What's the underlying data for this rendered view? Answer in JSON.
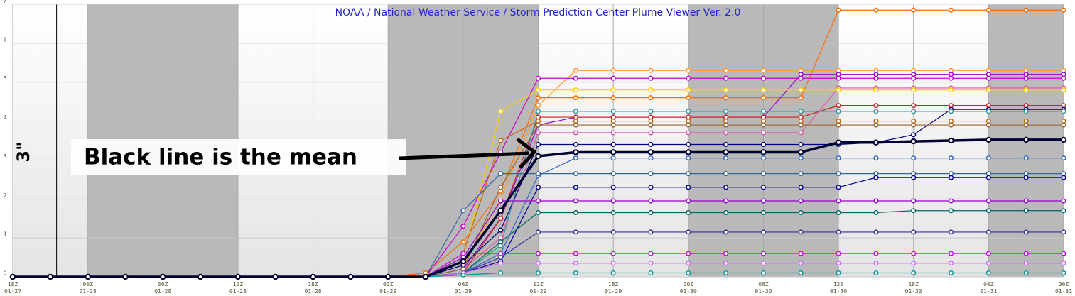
{
  "chart_data": {
    "type": "line",
    "title": "NOAA / National Weather Service / Storm Prediction Center Plume Viewer Ver. 2.0",
    "annotations": [
      "Black line is the mean",
      "3\""
    ],
    "x": [
      0,
      3,
      6,
      9,
      12,
      15,
      18,
      21,
      24,
      27,
      30,
      33,
      36,
      39,
      42,
      45,
      48,
      51,
      54,
      57,
      60,
      63,
      66,
      69,
      72,
      75,
      78,
      81,
      84
    ],
    "xlim": [
      0,
      84
    ],
    "xticks": [
      {
        "value": 0,
        "label": "18Z\n01-27"
      },
      {
        "value": 6,
        "label": "00Z\n01-28"
      },
      {
        "value": 12,
        "label": "06Z\n01-28"
      },
      {
        "value": 18,
        "label": "12Z\n01-28"
      },
      {
        "value": 24,
        "label": "18Z\n01-28"
      },
      {
        "value": 30,
        "label": "00Z\n01-29"
      },
      {
        "value": 36,
        "label": "06Z\n01-29"
      },
      {
        "value": 42,
        "label": "12Z\n01-29"
      },
      {
        "value": 48,
        "label": "18Z\n01-29"
      },
      {
        "value": 54,
        "label": "00Z\n01-30"
      },
      {
        "value": 60,
        "label": "06Z\n01-30"
      },
      {
        "value": 66,
        "label": "12Z\n01-30"
      },
      {
        "value": 72,
        "label": "18Z\n01-30"
      },
      {
        "value": 78,
        "label": "00Z\n01-31"
      },
      {
        "value": 84,
        "label": "06Z\n01-31"
      }
    ],
    "ylim": [
      0,
      7
    ],
    "yticks": [
      0,
      1,
      2,
      3,
      4,
      5,
      6,
      7
    ],
    "grid": true,
    "shading": [
      [
        6,
        18
      ],
      [
        30,
        42
      ],
      [
        54,
        66
      ],
      [
        78,
        84
      ]
    ],
    "now_line": 3.5,
    "series": [
      {
        "color": "#ff6a00",
        "values": [
          0,
          0,
          0,
          0,
          0,
          0,
          0,
          0,
          0,
          0,
          0,
          0.1,
          0.9,
          2.2,
          4.6,
          4.6,
          4.6,
          4.6,
          4.6,
          4.6,
          4.6,
          4.6,
          6.85,
          6.85,
          6.85,
          6.85,
          6.85,
          6.85,
          6.85
        ]
      },
      {
        "color": "#ff9933",
        "values": [
          0,
          0,
          0,
          0,
          0,
          0,
          0,
          0,
          0,
          0,
          0,
          0,
          0.3,
          2.0,
          4.4,
          5.3,
          5.3,
          5.3,
          5.3,
          5.3,
          5.3,
          5.3,
          5.3,
          5.3,
          5.3,
          5.3,
          5.3,
          5.3,
          5.3
        ]
      },
      {
        "color": "#9900cc",
        "values": [
          0,
          0,
          0,
          0,
          0,
          0,
          0,
          0,
          0,
          0,
          0,
          0,
          0.2,
          1.5,
          3.9,
          4.1,
          4.1,
          4.1,
          4.1,
          4.1,
          4.1,
          5.2,
          5.2,
          5.2,
          5.2,
          5.2,
          5.2,
          5.2,
          5.2
        ]
      },
      {
        "color": "#cc00cc",
        "values": [
          0,
          0,
          0,
          0,
          0,
          0,
          0,
          0,
          0,
          0,
          0,
          0,
          1.3,
          3.2,
          5.1,
          5.1,
          5.1,
          5.1,
          5.1,
          5.1,
          5.1,
          5.1,
          5.1,
          5.1,
          5.1,
          5.1,
          5.1,
          5.1,
          5.1
        ]
      },
      {
        "color": "#dd55aa",
        "values": [
          0,
          0,
          0,
          0,
          0,
          0,
          0,
          0,
          0,
          0,
          0,
          0,
          0.2,
          1.0,
          3.7,
          3.7,
          3.7,
          3.7,
          3.7,
          3.7,
          3.7,
          3.7,
          4.85,
          4.85,
          4.85,
          4.85,
          4.85,
          4.85,
          4.85
        ]
      },
      {
        "color": "#ffcc00",
        "values": [
          0,
          0,
          0,
          0,
          0,
          0,
          0,
          0,
          0,
          0,
          0,
          0,
          0.5,
          4.25,
          4.8,
          4.8,
          4.8,
          4.8,
          4.8,
          4.8,
          4.8,
          4.8,
          4.8,
          4.8,
          4.8,
          4.8,
          4.8,
          4.8,
          4.8
        ]
      },
      {
        "color": "#cc2222",
        "values": [
          0,
          0,
          0,
          0,
          0,
          0,
          0,
          0,
          0,
          0,
          0,
          0,
          0.1,
          1.5,
          4.1,
          4.1,
          4.1,
          4.1,
          4.1,
          4.1,
          4.1,
          4.1,
          4.4,
          4.4,
          4.4,
          4.4,
          4.4,
          4.4,
          4.4
        ]
      },
      {
        "color": "#000080",
        "values": [
          0,
          0,
          0,
          0,
          0,
          0,
          0,
          0,
          0,
          0,
          0,
          0,
          0.3,
          1.2,
          3.4,
          3.4,
          3.4,
          3.4,
          3.4,
          3.4,
          3.4,
          3.4,
          3.4,
          3.45,
          3.65,
          4.3,
          4.3,
          4.3,
          4.3
        ]
      },
      {
        "color": "#339999",
        "values": [
          0,
          0,
          0,
          0,
          0,
          0,
          0,
          0,
          0,
          0,
          0,
          0,
          0.1,
          0.8,
          4.25,
          4.25,
          4.25,
          4.25,
          4.25,
          4.25,
          4.25,
          4.25,
          4.25,
          4.25,
          4.25,
          4.25,
          4.25,
          4.25,
          4.25
        ]
      },
      {
        "color": "#cc6600",
        "values": [
          0,
          0,
          0,
          0,
          0,
          0,
          0,
          0,
          0,
          0,
          0,
          0,
          0.6,
          3.5,
          4.0,
          4.0,
          4.0,
          4.0,
          4.0,
          4.0,
          4.0,
          4.0,
          4.0,
          4.0,
          4.0,
          4.0,
          4.0,
          4.0,
          4.0
        ]
      },
      {
        "color": "#996633",
        "values": [
          0,
          0,
          0,
          0,
          0,
          0,
          0,
          0,
          0,
          0,
          0,
          0,
          0.2,
          2.3,
          3.9,
          3.9,
          3.9,
          3.9,
          3.9,
          3.9,
          3.9,
          3.9,
          3.9,
          3.9,
          3.9,
          3.9,
          3.9,
          3.9,
          3.9
        ]
      },
      {
        "color": "#3366cc",
        "values": [
          0,
          0,
          0,
          0,
          0,
          0,
          0,
          0,
          0,
          0,
          0,
          0,
          0.1,
          0.6,
          2.6,
          3.05,
          3.05,
          3.05,
          3.05,
          3.05,
          3.05,
          3.05,
          3.05,
          3.05,
          3.05,
          3.05,
          3.05,
          3.05,
          3.05
        ]
      },
      {
        "color": "#336699",
        "values": [
          0,
          0,
          0,
          0,
          0,
          0,
          0,
          0,
          0,
          0,
          0,
          0,
          1.7,
          2.65,
          2.65,
          2.65,
          2.65,
          2.65,
          2.65,
          2.65,
          2.65,
          2.65,
          2.65,
          2.65,
          2.65,
          2.65,
          2.65,
          2.65,
          2.65
        ]
      },
      {
        "color": "#000099",
        "values": [
          0,
          0,
          0,
          0,
          0,
          0,
          0,
          0,
          0,
          0,
          0,
          0,
          0.1,
          0.4,
          2.3,
          2.3,
          2.3,
          2.3,
          2.3,
          2.3,
          2.3,
          2.3,
          2.3,
          2.55,
          2.55,
          2.55,
          2.55,
          2.55,
          2.55
        ]
      },
      {
        "color": "#9900cc",
        "values": [
          0,
          0,
          0,
          0,
          0,
          0,
          0,
          0,
          0,
          0,
          0,
          0,
          0.5,
          1.95,
          1.95,
          1.95,
          1.95,
          1.95,
          1.95,
          1.95,
          1.95,
          1.95,
          1.95,
          1.95,
          1.95,
          1.95,
          1.95,
          1.95,
          1.95
        ]
      },
      {
        "color": "#006666",
        "values": [
          0,
          0,
          0,
          0,
          0,
          0,
          0,
          0,
          0,
          0,
          0,
          0,
          0.1,
          0.9,
          1.65,
          1.65,
          1.65,
          1.65,
          1.65,
          1.65,
          1.65,
          1.65,
          1.65,
          1.65,
          1.7,
          1.7,
          1.7,
          1.7,
          1.7
        ]
      },
      {
        "color": "#333399",
        "values": [
          0,
          0,
          0,
          0,
          0,
          0,
          0,
          0,
          0,
          0,
          0,
          0,
          0.1,
          0.5,
          1.15,
          1.15,
          1.15,
          1.15,
          1.15,
          1.15,
          1.15,
          1.15,
          1.15,
          1.15,
          1.15,
          1.15,
          1.15,
          1.15,
          1.15
        ]
      },
      {
        "color": "#cc00ff",
        "values": [
          0,
          0,
          0,
          0,
          0,
          0,
          0,
          0,
          0,
          0,
          0,
          0,
          0.6,
          0.6,
          0.6,
          0.6,
          0.6,
          0.6,
          0.6,
          0.6,
          0.6,
          0.6,
          0.6,
          0.6,
          0.6,
          0.6,
          0.6,
          0.6,
          0.6
        ]
      },
      {
        "color": "#cc66ff",
        "values": [
          0,
          0,
          0,
          0,
          0,
          0,
          0,
          0,
          0,
          0,
          0,
          0,
          0.1,
          0.35,
          0.35,
          0.35,
          0.35,
          0.35,
          0.35,
          0.35,
          0.35,
          0.35,
          0.35,
          0.35,
          0.35,
          0.35,
          0.35,
          0.35,
          0.35
        ]
      },
      {
        "color": "#009999",
        "values": [
          0,
          0,
          0,
          0,
          0,
          0,
          0,
          0,
          0,
          0,
          0,
          0,
          0.05,
          0.1,
          0.1,
          0.1,
          0.1,
          0.1,
          0.1,
          0.1,
          0.1,
          0.1,
          0.1,
          0.1,
          0.1,
          0.1,
          0.1,
          0.1,
          0.1
        ]
      },
      {
        "color": "#000033",
        "width": 3.5,
        "values": [
          0,
          0,
          0,
          0,
          0,
          0,
          0,
          0,
          0,
          0,
          0,
          0,
          0.4,
          1.7,
          3.1,
          3.2,
          3.2,
          3.2,
          3.2,
          3.2,
          3.2,
          3.2,
          3.45,
          3.45,
          3.48,
          3.5,
          3.52,
          3.52,
          3.52
        ]
      }
    ]
  }
}
